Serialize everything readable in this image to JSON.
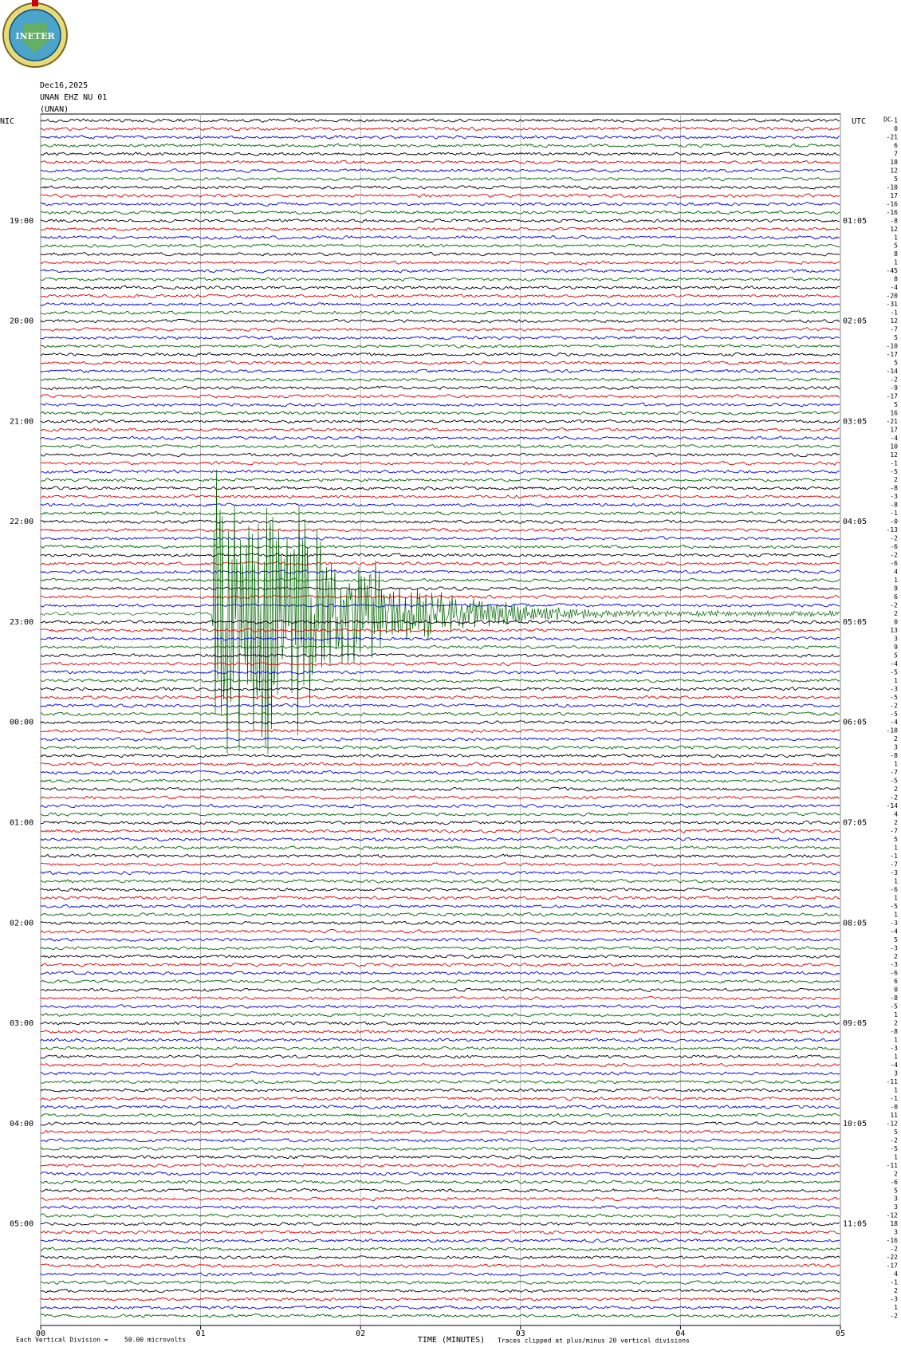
{
  "chart_data": {
    "type": "helicorder",
    "logo": "INETER",
    "date": "Dec16,2025",
    "station": "UNAN EHZ NU 01",
    "network": "(UNAN)",
    "left_zone": "NIC",
    "right_zone": "UTC",
    "dc_heading": "DC",
    "left_hours": [
      "19:00",
      "20:00",
      "21:00",
      "22:00",
      "23:00",
      "00:00",
      "01:00",
      "02:00",
      "03:00",
      "04:00",
      "05:00"
    ],
    "right_hours": [
      "01:05",
      "02:05",
      "03:05",
      "04:05",
      "05:05",
      "06:05",
      "07:05",
      "08:05",
      "09:05",
      "10:05",
      "11:05"
    ],
    "xlabel": "TIME (MINUTES)",
    "xlim": [
      0,
      5
    ],
    "xticks": [
      {
        "value": 0,
        "label": "00"
      },
      {
        "value": 1,
        "label": "01"
      },
      {
        "value": 2,
        "label": "02"
      },
      {
        "value": 3,
        "label": "03"
      },
      {
        "value": 4,
        "label": "04"
      },
      {
        "value": 5,
        "label": "05"
      }
    ],
    "scale_text": "Each Vertical Division =",
    "scale_value": "50.00 microvolts",
    "clip_note": "Traces clipped at plus/minus 20 vertical divisions",
    "dc_offsets": [
      "-1",
      "0",
      "-21",
      "6",
      "7",
      "18",
      "12",
      "5",
      "-10",
      "17",
      "-16",
      "-16",
      "-8",
      "12",
      "1",
      "5",
      "8",
      "1",
      "-45",
      "8",
      "-4",
      "-20",
      "-31",
      "-1",
      "12",
      "-7",
      "5",
      "-10",
      "-17",
      "5",
      "-14",
      "-2",
      "-9",
      "-17",
      "5",
      "16",
      "-21",
      "17",
      "-4",
      "10",
      "12",
      "-1",
      "-5",
      "2",
      "-8",
      "-3",
      "-8",
      "-1",
      "-0",
      "-13",
      "-2",
      "-6",
      "-2",
      "-6",
      "4",
      "1",
      "9",
      "6",
      "-2",
      "2",
      "0",
      "13",
      "3",
      "9",
      "5",
      "-4",
      "-5",
      "1",
      "-3",
      "-5",
      "-2",
      "-5",
      "-4",
      "-10",
      "2",
      "3",
      "-8",
      "1",
      "-7",
      "-5",
      "2",
      "-2",
      "-14",
      "4",
      "2",
      "-7",
      "5",
      "1",
      "-1",
      "-7",
      "-3",
      "1",
      "-6",
      "1",
      "-5",
      "1",
      "-3",
      "-4",
      "5",
      "-3",
      "2",
      "-3",
      "-6",
      "6",
      "0",
      "-8",
      "-5",
      "1",
      "2",
      "-8",
      "1",
      "-3",
      "1",
      "-4",
      "3",
      "-11",
      "1",
      "-1",
      "-0",
      "11",
      "-12",
      "5",
      "-2",
      "-5",
      "1",
      "-11",
      "2",
      "-6",
      "5",
      "3",
      "3",
      "-12",
      "18",
      "3",
      "-16",
      "-2",
      "-22",
      "-17",
      "4",
      "-1",
      "2",
      "-3",
      "1",
      "-2"
    ]
  }
}
